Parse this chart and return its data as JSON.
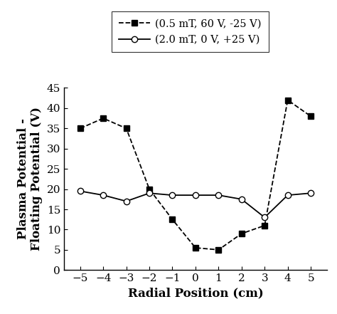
{
  "series1": {
    "label": "(0.5 mT, 60 V, -25 V)",
    "x": [
      -5,
      -4,
      -3,
      -2,
      -1,
      0,
      1,
      2,
      3,
      4,
      5
    ],
    "y": [
      35,
      37.5,
      35,
      20,
      12.5,
      5.5,
      5,
      9,
      11,
      42,
      38
    ],
    "marker": "s",
    "markersize": 6,
    "markerfacecolor": "black"
  },
  "series2": {
    "label": "(2.0 mT, 0 V, +25 V)",
    "x": [
      -5,
      -4,
      -3,
      -2,
      -1,
      0,
      1,
      2,
      3,
      4,
      5
    ],
    "y": [
      19.5,
      18.5,
      17,
      19,
      18.5,
      18.5,
      18.5,
      17.5,
      13,
      18.5,
      19
    ],
    "marker": "o",
    "markersize": 6,
    "markerfacecolor": "white"
  },
  "xlabel": "Radial Position (cm)",
  "ylabel": "Plasma Potential -\nFloating Potential (V)",
  "xlim": [
    -5.7,
    5.7
  ],
  "ylim": [
    0,
    45
  ],
  "xticks": [
    -5,
    -4,
    -3,
    -2,
    -1,
    0,
    1,
    2,
    3,
    4,
    5
  ],
  "yticks": [
    0,
    5,
    10,
    15,
    20,
    25,
    30,
    35,
    40,
    45
  ],
  "background_color": "#ffffff",
  "axis_fontsize": 12,
  "tick_fontsize": 11,
  "legend_fontsize": 10.5
}
